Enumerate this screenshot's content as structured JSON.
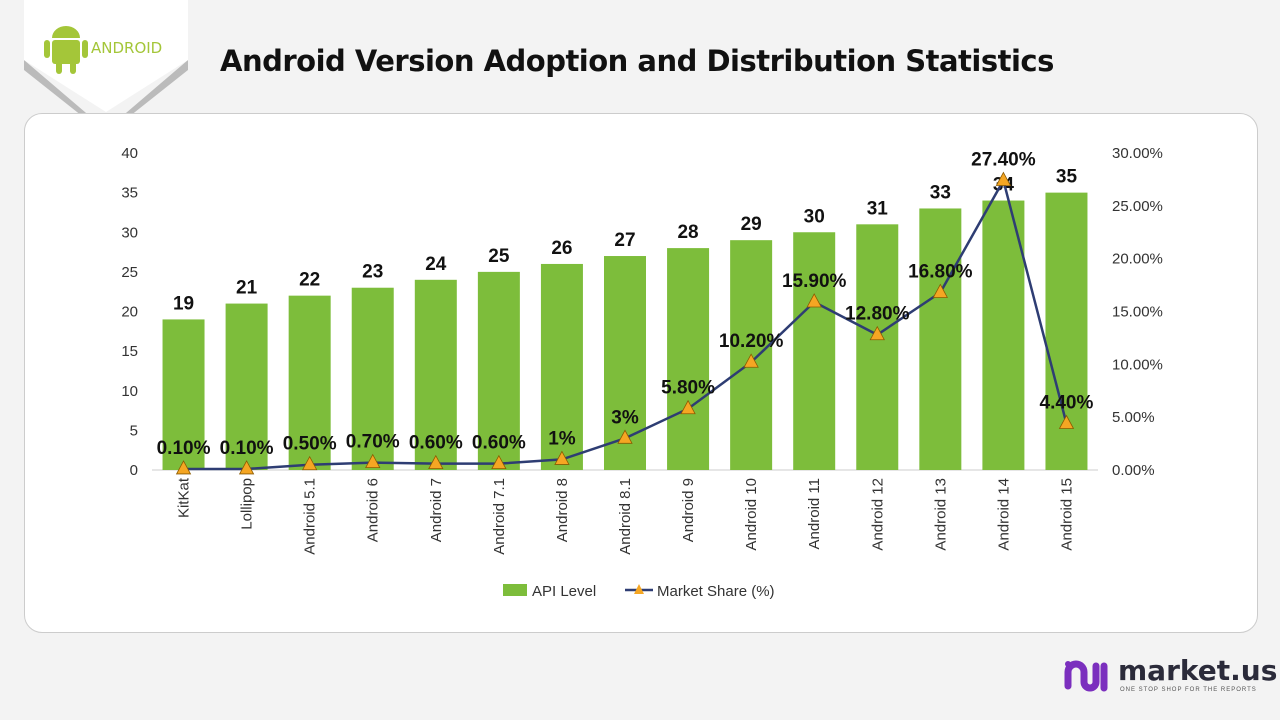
{
  "title": "Android Version Adoption and Distribution Statistics",
  "logo": {
    "text": "ANDROID",
    "color": "#a4c639"
  },
  "brand": {
    "name": "market.us",
    "tagline": "ONE STOP SHOP FOR THE REPORTS"
  },
  "chart_data": {
    "type": "bar+line",
    "categories": [
      "KitKat",
      "Lollipop",
      "Android 5.1",
      "Android 6",
      "Android 7",
      "Android 7.1",
      "Android 8",
      "Android 8.1",
      "Android 9",
      "Android 10",
      "Android 11",
      "Android 12",
      "Android 13",
      "Android 14",
      "Android 15"
    ],
    "series": [
      {
        "name": "API Level",
        "type": "bar",
        "axis": "left",
        "color": "#7dbd3b",
        "values": [
          19,
          21,
          22,
          23,
          24,
          25,
          26,
          27,
          28,
          29,
          30,
          31,
          33,
          34,
          35
        ],
        "labels": [
          "19",
          "21",
          "22",
          "23",
          "24",
          "25",
          "26",
          "27",
          "28",
          "29",
          "30",
          "31",
          "33",
          "34",
          "35"
        ]
      },
      {
        "name": "Market Share (%)",
        "type": "line",
        "axis": "right",
        "color": "#2e3d73",
        "marker": "triangle",
        "marker_color": "#f5a623",
        "values": [
          0.1,
          0.1,
          0.5,
          0.7,
          0.6,
          0.6,
          1,
          3,
          5.8,
          10.2,
          15.9,
          12.8,
          16.8,
          27.4,
          4.4
        ],
        "labels": [
          "0.10%",
          "0.10%",
          "0.50%",
          "0.70%",
          "0.60%",
          "0.60%",
          "1%",
          "3%",
          "5.80%",
          "10.20%",
          "15.90%",
          "12.80%",
          "16.80%",
          "27.40%",
          "4.40%"
        ]
      }
    ],
    "y_left": {
      "range": [
        0,
        40
      ],
      "ticks": [
        "0",
        "5",
        "10",
        "15",
        "20",
        "25",
        "30",
        "35",
        "40"
      ]
    },
    "y_right": {
      "range": [
        0,
        30
      ],
      "ticks": [
        "0.00%",
        "5.00%",
        "10.00%",
        "15.00%",
        "20.00%",
        "25.00%",
        "30.00%"
      ]
    },
    "grid": false,
    "legend": "bottom"
  }
}
